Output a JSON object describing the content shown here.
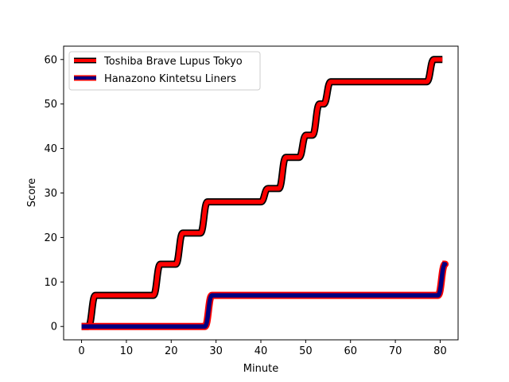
{
  "chart_data": {
    "type": "line",
    "xlabel": "Minute",
    "ylabel": "Score",
    "xlim": [
      -4,
      84
    ],
    "ylim": [
      -3,
      63
    ],
    "x_ticks": [
      "0",
      "10",
      "20",
      "30",
      "40",
      "50",
      "60",
      "70",
      "80"
    ],
    "x_tick_values": [
      0,
      10,
      20,
      30,
      40,
      50,
      60,
      70,
      80
    ],
    "y_ticks": [
      "0",
      "10",
      "20",
      "30",
      "40",
      "50",
      "60"
    ],
    "y_tick_values": [
      0,
      10,
      20,
      30,
      40,
      50,
      60
    ],
    "grid": false,
    "legend_position": "upper-left",
    "series": [
      {
        "name": "Toshiba Brave Lupus Tokyo",
        "color": "#ff0000",
        "edge_color": "#000000",
        "events": [
          {
            "minute": 0,
            "score": 0
          },
          {
            "minute": 1.5,
            "score": 7
          },
          {
            "minute": 16,
            "score": 14
          },
          {
            "minute": 21,
            "score": 21
          },
          {
            "minute": 26.5,
            "score": 28
          },
          {
            "minute": 40,
            "score": 31
          },
          {
            "minute": 44,
            "score": 38
          },
          {
            "minute": 48.5,
            "score": 43
          },
          {
            "minute": 51.5,
            "score": 50
          },
          {
            "minute": 54,
            "score": 55
          },
          {
            "minute": 77,
            "score": 60
          }
        ],
        "end_minute": 80.5
      },
      {
        "name": "Hanazono Kintetsu Liners",
        "color": "#000080",
        "edge_color": "#ff0000",
        "events": [
          {
            "minute": 0,
            "score": 0
          },
          {
            "minute": 27.5,
            "score": 7
          },
          {
            "minute": 79.5,
            "score": 14
          }
        ],
        "end_minute": 80.5
      }
    ]
  }
}
